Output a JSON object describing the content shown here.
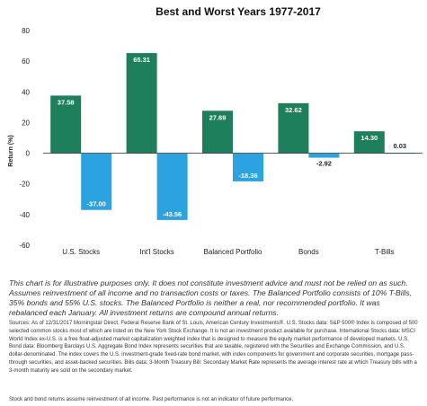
{
  "chart_data": {
    "type": "bar",
    "title": "Best and Worst Years 1977-2017",
    "ylabel": "Return (%)",
    "ylim": [
      -60,
      80
    ],
    "yticks": [
      80,
      60,
      40,
      20,
      0,
      -20,
      -40,
      -60
    ],
    "categories": [
      "U.S. Stocks",
      "Int'l Stocks",
      "Balanced Portfolio",
      "Bonds",
      "T-Bills"
    ],
    "series": [
      {
        "role": "best",
        "color": "#1e7f5c",
        "values": [
          37.58,
          65.31,
          27.69,
          32.62,
          14.3
        ],
        "labels": [
          "37.58",
          "65.31",
          "27.69",
          "32.62",
          "14.30"
        ]
      },
      {
        "role": "worst",
        "color": "#2aa3e0",
        "values": [
          -37.0,
          -43.56,
          -18.36,
          -2.92,
          0.03
        ],
        "labels": [
          "-37.00",
          "-43.56",
          "-18.36",
          "-2.92",
          "0.03"
        ]
      }
    ],
    "grid": false,
    "legend": "none"
  },
  "text": {
    "disclaimer": "This chart is for illustrative purposes only. It does not constitute investment advice and must not be relied on as such. Assumes reinvestment of all income and no transaction costs or taxes. The Balanced Portfolio consists of 10% T-Bills, 35% bonds and 55% U.S. stocks. The Balanced Portfolio is neither a real, nor recommended portfolio. It was rebalanced each January. All investment returns are compound annual returns.",
    "sources": "Sources: As of 12/31/2017 Morningstar Direct, Federal Reserve Bank of St. Louis, American Century Investments®. U.S. Stocks data: S&P 500® Index is composed of 500 selected common stocks most of which are listed on the New York Stock Exchange. It is not an investment product available for purchase. International Stocks data: MSCI World Index ex-U.S. is a free float-adjusted market capitalization weighted index that is designed to measure the equity market performance of developed markets. U.S. Bond data: Bloomberg Barclays U.S. Aggregate Bond Index represents securities that are taxable, registered with the Securities and Exchange Commission, and U.S. dollar-denominated. The index covers the U.S. investment-grade fixed-rate bond market, with index components for government and corporate securities, mortgage pass-through securities, and asset-backed securities. Bills data: 3-Month Treasury Bill: Secondary Market Rate represents the average interest rate at which Treasury bills with a 3-month maturity are sold on the secondary market.",
    "footer_note": "Stock and bond returns assume reinvestment of all income. Past performance is not an indicator of future performance."
  }
}
